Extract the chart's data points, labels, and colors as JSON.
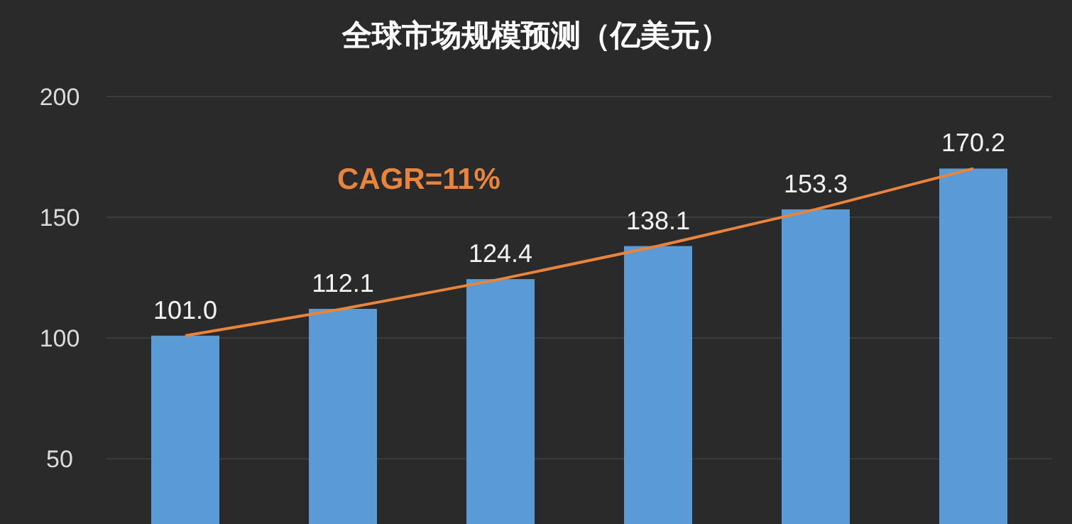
{
  "chart_data": {
    "type": "bar",
    "title": "全球市场规模预测（亿美元）",
    "categories": [
      null,
      null,
      null,
      null,
      null,
      null
    ],
    "series": [
      {
        "color": "#5b9bd5",
        "values": [
          101.0,
          112.1,
          124.4,
          138.1,
          153.3,
          170.2
        ],
        "value_labels": [
          "101.0",
          "112.1",
          "124.4",
          "138.1",
          "153.3",
          "170.2"
        ]
      },
      {
        "type": "line",
        "color": "#e8843c",
        "values": [
          101.0,
          112.1,
          124.4,
          138.1,
          153.3,
          170.2
        ]
      }
    ],
    "ylim": [
      23,
      200
    ],
    "yticks": [
      50,
      100,
      150,
      200
    ],
    "grid": "y",
    "annotations": [
      "CAGR=11%"
    ]
  }
}
